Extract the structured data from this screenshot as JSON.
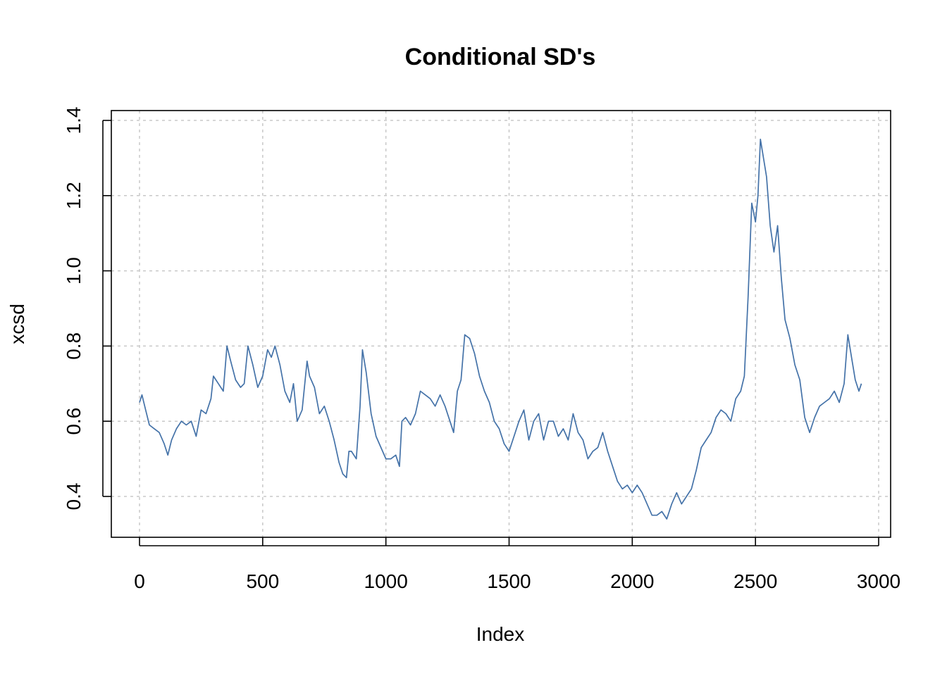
{
  "chart_data": {
    "type": "line",
    "title": "Conditional SD's",
    "xlabel": "Index",
    "ylabel": "xcsd",
    "xlim": [
      0,
      3000
    ],
    "ylim": [
      0.33,
      1.4
    ],
    "xticks": [
      0,
      500,
      1000,
      1500,
      2000,
      2500,
      3000
    ],
    "xtick_labels": [
      "0",
      "500",
      "1000",
      "1500",
      "2000",
      "2500",
      "3000"
    ],
    "yticks": [
      0.4,
      0.6,
      0.8,
      1.0,
      1.2,
      1.4
    ],
    "ytick_labels": [
      "0.4",
      "0.6",
      "0.8",
      "1.0",
      "1.2",
      "1.4"
    ],
    "grid": true,
    "line_color": "#4472a8",
    "series": [
      {
        "x": [
          0,
          10,
          25,
          40,
          60,
          80,
          100,
          115,
          130,
          150,
          170,
          190,
          210,
          230,
          250,
          270,
          290,
          300,
          320,
          340,
          355,
          370,
          390,
          410,
          425,
          440,
          460,
          480,
          500,
          520,
          535,
          550,
          570,
          590,
          610,
          625,
          640,
          660,
          680,
          690,
          710,
          730,
          750,
          770,
          790,
          810,
          825,
          840,
          850,
          860,
          880,
          895,
          905,
          920,
          940,
          960,
          980,
          1000,
          1020,
          1040,
          1055,
          1065,
          1080,
          1100,
          1120,
          1140,
          1160,
          1180,
          1200,
          1220,
          1240,
          1260,
          1275,
          1290,
          1305,
          1320,
          1340,
          1360,
          1380,
          1400,
          1420,
          1440,
          1460,
          1480,
          1500,
          1520,
          1540,
          1560,
          1580,
          1600,
          1620,
          1640,
          1660,
          1680,
          1700,
          1720,
          1740,
          1760,
          1780,
          1800,
          1820,
          1840,
          1860,
          1880,
          1900,
          1920,
          1940,
          1960,
          1980,
          2000,
          2020,
          2040,
          2060,
          2080,
          2100,
          2120,
          2140,
          2160,
          2180,
          2200,
          2220,
          2240,
          2260,
          2280,
          2300,
          2320,
          2340,
          2360,
          2380,
          2400,
          2420,
          2440,
          2455,
          2470,
          2485,
          2500,
          2510,
          2520,
          2530,
          2545,
          2560,
          2575,
          2590,
          2605,
          2620,
          2640,
          2660,
          2680,
          2700,
          2720,
          2740,
          2760,
          2780,
          2800,
          2820,
          2840,
          2860,
          2875,
          2890,
          2905,
          2920,
          2930
        ],
        "y": [
          0.65,
          0.67,
          0.63,
          0.59,
          0.58,
          0.57,
          0.54,
          0.51,
          0.55,
          0.58,
          0.6,
          0.59,
          0.6,
          0.56,
          0.63,
          0.62,
          0.66,
          0.72,
          0.7,
          0.68,
          0.8,
          0.76,
          0.71,
          0.69,
          0.7,
          0.8,
          0.75,
          0.69,
          0.72,
          0.79,
          0.77,
          0.8,
          0.75,
          0.68,
          0.65,
          0.7,
          0.6,
          0.63,
          0.76,
          0.72,
          0.69,
          0.62,
          0.64,
          0.6,
          0.55,
          0.49,
          0.46,
          0.45,
          0.52,
          0.52,
          0.5,
          0.64,
          0.79,
          0.73,
          0.62,
          0.56,
          0.53,
          0.5,
          0.5,
          0.51,
          0.48,
          0.6,
          0.61,
          0.59,
          0.62,
          0.68,
          0.67,
          0.66,
          0.64,
          0.67,
          0.64,
          0.6,
          0.57,
          0.68,
          0.71,
          0.83,
          0.82,
          0.78,
          0.72,
          0.68,
          0.65,
          0.6,
          0.58,
          0.54,
          0.52,
          0.56,
          0.6,
          0.63,
          0.55,
          0.6,
          0.62,
          0.55,
          0.6,
          0.6,
          0.56,
          0.58,
          0.55,
          0.62,
          0.57,
          0.55,
          0.5,
          0.52,
          0.53,
          0.57,
          0.52,
          0.48,
          0.44,
          0.42,
          0.43,
          0.41,
          0.43,
          0.41,
          0.38,
          0.35,
          0.35,
          0.36,
          0.34,
          0.38,
          0.41,
          0.38,
          0.4,
          0.42,
          0.47,
          0.53,
          0.55,
          0.57,
          0.61,
          0.63,
          0.62,
          0.6,
          0.66,
          0.68,
          0.72,
          0.93,
          1.18,
          1.13,
          1.2,
          1.35,
          1.31,
          1.25,
          1.12,
          1.05,
          1.12,
          0.98,
          0.87,
          0.82,
          0.75,
          0.71,
          0.61,
          0.57,
          0.61,
          0.64,
          0.65,
          0.66,
          0.68,
          0.65,
          0.7,
          0.83,
          0.77,
          0.71,
          0.68,
          0.7
        ]
      }
    ]
  }
}
